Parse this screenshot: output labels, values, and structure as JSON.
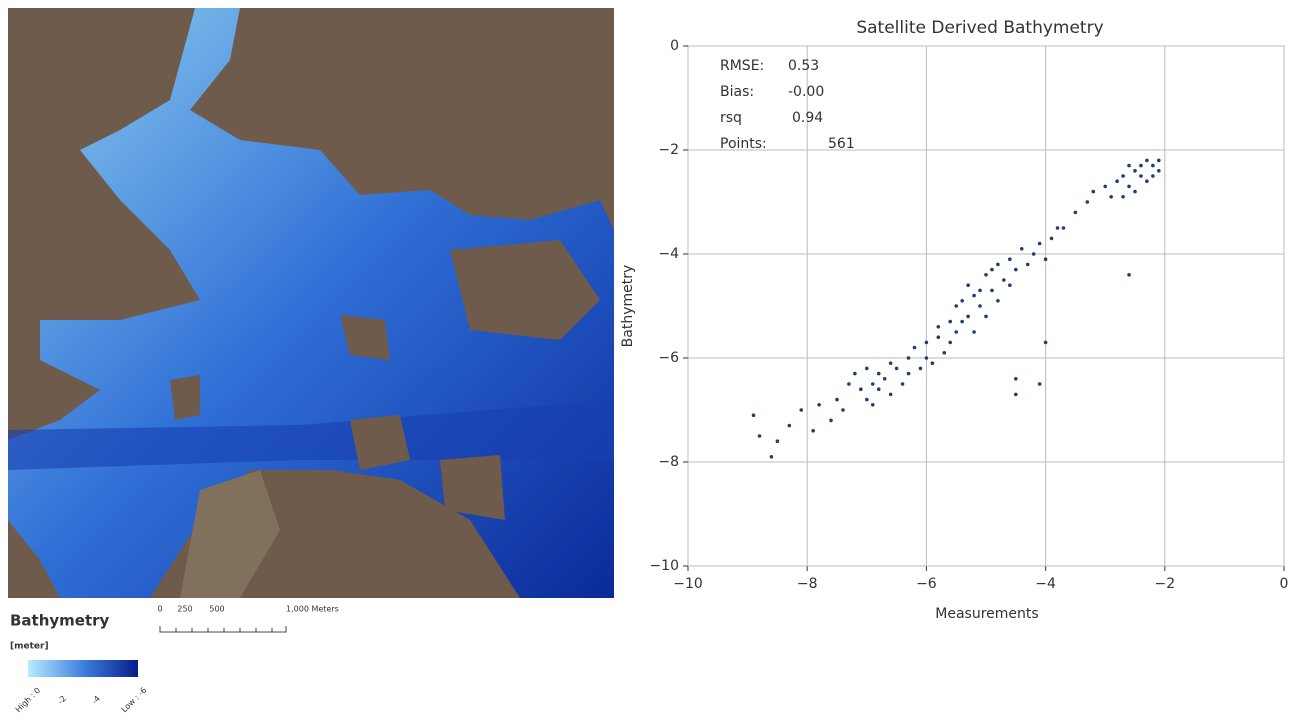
{
  "map_legend": {
    "title": "Bathymetry",
    "unit": "[meter]",
    "scale_labels": [
      "0",
      "250",
      "500",
      "1,000 Meters"
    ],
    "color_labels": [
      "High : 0",
      "-2",
      "-4",
      "Low : -6"
    ]
  },
  "chart_data": {
    "type": "scatter",
    "title": "Satellite Derived Bathymetry",
    "x_label": "Measurements",
    "y_label": "Bathymetry",
    "stats": [
      {
        "label": "RMSE:",
        "value": "0.53"
      },
      {
        "label": "Bias:",
        "value": "-0.00"
      },
      {
        "label": "rsq",
        "value": "0.94"
      },
      {
        "label": "Points:",
        "value": "561"
      }
    ],
    "color": "#1f3f73",
    "grid": true,
    "xlim": [
      -10,
      0
    ],
    "ylim": [
      -10,
      0
    ],
    "xticks": [
      {
        "value": -10,
        "label": "−10"
      },
      {
        "value": -8,
        "label": "−8"
      },
      {
        "value": -6,
        "label": "−6"
      },
      {
        "value": -4,
        "label": "−4"
      },
      {
        "value": -2,
        "label": "−2"
      },
      0
    ],
    "yticks": [
      {
        "value": -10,
        "label": "−10"
      },
      {
        "value": -8,
        "label": "−8"
      },
      {
        "value": -6,
        "label": "−6"
      },
      {
        "value": -4,
        "label": "−4"
      },
      {
        "value": -2,
        "label": "−2"
      },
      0
    ],
    "x": [
      -8.9,
      -8.8,
      -8.6,
      -8.5,
      -8.3,
      -8.1,
      -7.9,
      -7.8,
      -7.6,
      -7.5,
      -7.4,
      -7.3,
      -7.2,
      -7.1,
      -7.0,
      -7.0,
      -6.9,
      -6.9,
      -6.8,
      -6.8,
      -6.7,
      -6.6,
      -6.6,
      -6.5,
      -6.4,
      -6.3,
      -6.3,
      -6.2,
      -6.1,
      -6.0,
      -6.0,
      -5.9,
      -5.8,
      -5.8,
      -5.7,
      -5.6,
      -5.6,
      -5.5,
      -5.5,
      -5.4,
      -5.4,
      -5.3,
      -5.3,
      -5.2,
      -5.2,
      -5.1,
      -5.1,
      -5.0,
      -5.0,
      -4.9,
      -4.9,
      -4.8,
      -4.8,
      -4.7,
      -4.6,
      -4.6,
      -4.5,
      -4.5,
      -4.4,
      -4.3,
      -4.2,
      -4.1,
      -4.0,
      -3.9,
      -3.8,
      -3.7,
      -3.5,
      -3.3,
      -3.2,
      -3.0,
      -2.9,
      -2.8,
      -2.7,
      -2.7,
      -2.6,
      -2.6,
      -2.5,
      -2.5,
      -2.4,
      -2.4,
      -2.3,
      -2.3,
      -2.2,
      -2.2,
      -2.1,
      -2.1,
      -2.6,
      -4.0,
      -4.1,
      -4.5
    ],
    "y": [
      -7.1,
      -7.5,
      -7.9,
      -7.6,
      -7.3,
      -7.0,
      -7.4,
      -6.9,
      -7.2,
      -6.8,
      -7.0,
      -6.5,
      -6.3,
      -6.6,
      -6.8,
      -6.2,
      -6.5,
      -6.9,
      -6.3,
      -6.6,
      -6.4,
      -6.1,
      -6.7,
      -6.2,
      -6.5,
      -6.0,
      -6.3,
      -5.8,
      -6.2,
      -5.7,
      -6.0,
      -6.1,
      -5.6,
      -5.4,
      -5.9,
      -5.3,
      -5.7,
      -5.0,
      -5.5,
      -4.9,
      -5.3,
      -4.6,
      -5.2,
      -4.8,
      -5.5,
      -4.7,
      -5.0,
      -4.4,
      -5.2,
      -4.3,
      -4.7,
      -4.2,
      -4.9,
      -4.5,
      -4.1,
      -4.6,
      -4.3,
      -6.4,
      -3.9,
      -4.2,
      -4.0,
      -3.8,
      -4.1,
      -3.7,
      -3.5,
      -3.5,
      -3.2,
      -3.0,
      -2.8,
      -2.7,
      -2.9,
      -2.6,
      -2.5,
      -2.9,
      -2.3,
      -2.7,
      -2.4,
      -2.8,
      -2.3,
      -2.5,
      -2.2,
      -2.6,
      -2.3,
      -2.5,
      -2.2,
      -2.4,
      -4.4,
      -5.7,
      -6.5,
      -6.7
    ]
  }
}
